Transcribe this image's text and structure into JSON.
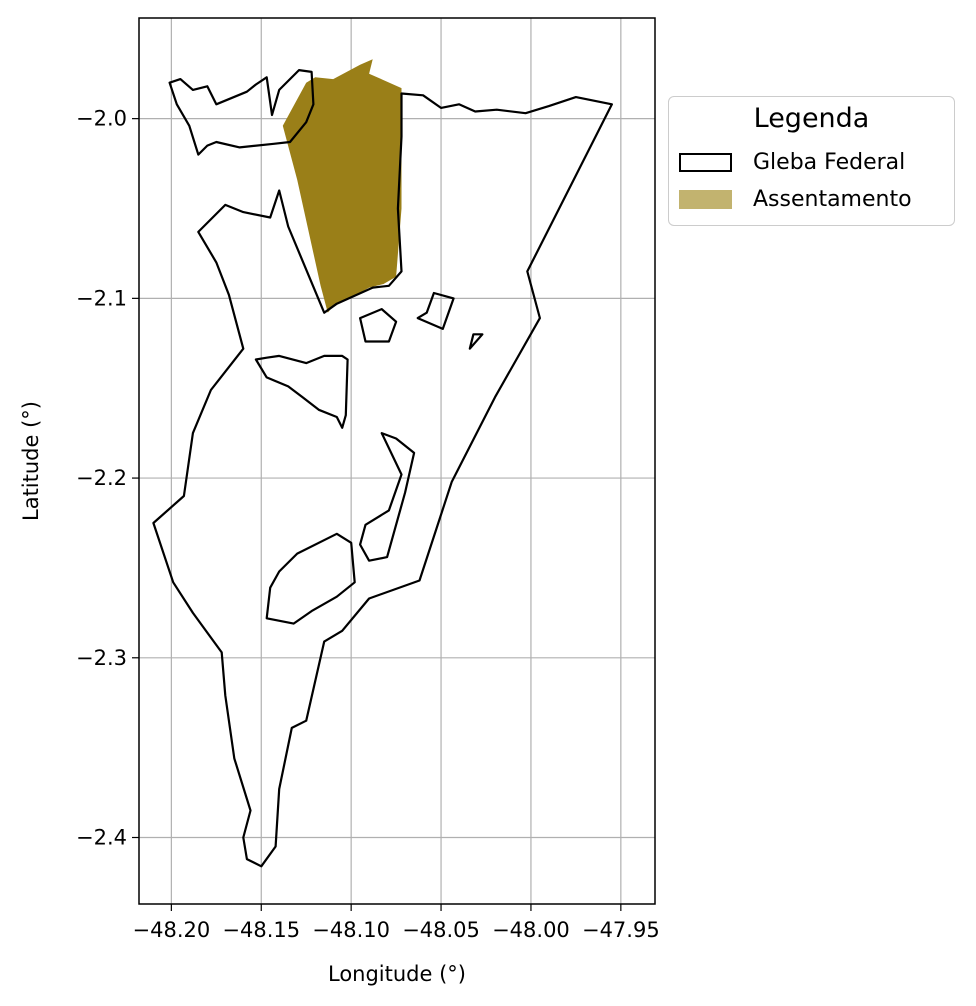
{
  "chart_data": {
    "type": "map",
    "xlabel": "Longitude (°)",
    "ylabel": "Latitude (°)",
    "xlim": [
      -48.218,
      -47.931
    ],
    "ylim": [
      -2.437,
      -1.944
    ],
    "x_ticks": [
      -48.2,
      -48.15,
      -48.1,
      -48.05,
      -48.0,
      -47.95
    ],
    "y_ticks": [
      -2.0,
      -2.1,
      -2.2,
      -2.3,
      -2.4
    ],
    "x_tick_labels": [
      "−48.20",
      "−48.15",
      "−48.10",
      "−48.05",
      "−48.00",
      "−47.95"
    ],
    "y_tick_labels": [
      "−2.0",
      "−2.1",
      "−2.2",
      "−2.3",
      "−2.4"
    ],
    "grid": true,
    "legend": {
      "title": "Legenda",
      "placement": "outside-right-top",
      "entries": [
        {
          "label": "Gleba Federal",
          "style": "outline",
          "color": "#000000"
        },
        {
          "label": "Assentamento",
          "style": "fill",
          "color": "#c2b36f"
        }
      ]
    },
    "layers": [
      {
        "name": "Gleba Federal",
        "style": "outline",
        "color": "#000000",
        "polygons": [
          [
            [
              -48.201,
              -1.98
            ],
            [
              -48.195,
              -1.978
            ],
            [
              -48.188,
              -1.984
            ],
            [
              -48.18,
              -1.982
            ],
            [
              -48.175,
              -1.992
            ],
            [
              -48.158,
              -1.985
            ],
            [
              -48.153,
              -1.981
            ],
            [
              -48.147,
              -1.977
            ],
            [
              -48.144,
              -1.998
            ],
            [
              -48.14,
              -1.984
            ],
            [
              -48.129,
              -1.973
            ],
            [
              -48.122,
              -1.974
            ],
            [
              -48.121,
              -1.992
            ],
            [
              -48.125,
              -2.002
            ],
            [
              -48.134,
              -2.013
            ],
            [
              -48.143,
              -2.014
            ],
            [
              -48.162,
              -2.016
            ],
            [
              -48.175,
              -2.013
            ],
            [
              -48.18,
              -2.015
            ],
            [
              -48.185,
              -2.02
            ],
            [
              -48.19,
              -2.004
            ],
            [
              -48.197,
              -1.992
            ],
            [
              -48.201,
              -1.98
            ]
          ],
          [
            [
              -48.072,
              -1.986
            ],
            [
              -48.06,
              -1.987
            ],
            [
              -48.05,
              -1.994
            ],
            [
              -48.04,
              -1.992
            ],
            [
              -48.031,
              -1.996
            ],
            [
              -48.019,
              -1.995
            ],
            [
              -48.003,
              -1.997
            ],
            [
              -47.99,
              -1.993
            ],
            [
              -47.975,
              -1.988
            ],
            [
              -47.955,
              -1.992
            ],
            [
              -48.002,
              -2.085
            ],
            [
              -47.995,
              -2.111
            ],
            [
              -48.02,
              -2.155
            ],
            [
              -48.044,
              -2.202
            ],
            [
              -48.062,
              -2.257
            ],
            [
              -48.09,
              -2.267
            ],
            [
              -48.105,
              -2.285
            ],
            [
              -48.115,
              -2.291
            ],
            [
              -48.125,
              -2.335
            ],
            [
              -48.133,
              -2.339
            ],
            [
              -48.14,
              -2.373
            ],
            [
              -48.142,
              -2.405
            ],
            [
              -48.15,
              -2.416
            ],
            [
              -48.158,
              -2.412
            ],
            [
              -48.16,
              -2.4
            ],
            [
              -48.156,
              -2.385
            ],
            [
              -48.165,
              -2.356
            ],
            [
              -48.17,
              -2.321
            ],
            [
              -48.172,
              -2.297
            ],
            [
              -48.188,
              -2.275
            ],
            [
              -48.199,
              -2.258
            ],
            [
              -48.21,
              -2.225
            ],
            [
              -48.193,
              -2.21
            ],
            [
              -48.188,
              -2.175
            ],
            [
              -48.178,
              -2.151
            ],
            [
              -48.16,
              -2.128
            ],
            [
              -48.168,
              -2.098
            ],
            [
              -48.175,
              -2.08
            ],
            [
              -48.185,
              -2.063
            ],
            [
              -48.17,
              -2.048
            ],
            [
              -48.16,
              -2.052
            ],
            [
              -48.145,
              -2.055
            ],
            [
              -48.14,
              -2.04
            ],
            [
              -48.135,
              -2.06
            ],
            [
              -48.115,
              -2.108
            ],
            [
              -48.108,
              -2.103
            ],
            [
              -48.088,
              -2.094
            ],
            [
              -48.079,
              -2.093
            ],
            [
              -48.072,
              -2.085
            ],
            [
              -48.074,
              -2.05
            ],
            [
              -48.072,
              -2.01
            ],
            [
              -48.072,
              -1.986
            ]
          ],
          [
            [
              -48.125,
              -2.136
            ],
            [
              -48.115,
              -2.132
            ],
            [
              -48.105,
              -2.132
            ],
            [
              -48.102,
              -2.134
            ],
            [
              -48.103,
              -2.165
            ],
            [
              -48.105,
              -2.172
            ],
            [
              -48.108,
              -2.166
            ],
            [
              -48.118,
              -2.162
            ],
            [
              -48.127,
              -2.155
            ],
            [
              -48.135,
              -2.149
            ],
            [
              -48.147,
              -2.144
            ],
            [
              -48.153,
              -2.134
            ],
            [
              -48.147,
              -2.133
            ],
            [
              -48.14,
              -2.132
            ],
            [
              -48.125,
              -2.136
            ]
          ],
          [
            [
              -48.092,
              -2.124
            ],
            [
              -48.086,
              -2.124
            ],
            [
              -48.079,
              -2.124
            ],
            [
              -48.075,
              -2.113
            ],
            [
              -48.083,
              -2.106
            ],
            [
              -48.095,
              -2.111
            ],
            [
              -48.092,
              -2.124
            ]
          ],
          [
            [
              -48.054,
              -2.097
            ],
            [
              -48.058,
              -2.108
            ],
            [
              -48.063,
              -2.111
            ],
            [
              -48.049,
              -2.117
            ],
            [
              -48.043,
              -2.1
            ],
            [
              -48.054,
              -2.097
            ]
          ],
          [
            [
              -48.032,
              -2.12
            ],
            [
              -48.034,
              -2.128
            ],
            [
              -48.027,
              -2.12
            ],
            [
              -48.032,
              -2.12
            ]
          ],
          [
            [
              -48.13,
              -2.242
            ],
            [
              -48.108,
              -2.231
            ],
            [
              -48.1,
              -2.236
            ],
            [
              -48.098,
              -2.258
            ],
            [
              -48.108,
              -2.266
            ],
            [
              -48.122,
              -2.274
            ],
            [
              -48.132,
              -2.281
            ],
            [
              -48.147,
              -2.278
            ],
            [
              -48.145,
              -2.261
            ],
            [
              -48.14,
              -2.252
            ],
            [
              -48.13,
              -2.242
            ]
          ],
          [
            [
              -48.083,
              -2.175
            ],
            [
              -48.072,
              -2.198
            ],
            [
              -48.079,
              -2.218
            ],
            [
              -48.092,
              -2.226
            ],
            [
              -48.095,
              -2.237
            ],
            [
              -48.09,
              -2.246
            ],
            [
              -48.08,
              -2.244
            ],
            [
              -48.07,
              -2.208
            ],
            [
              -48.065,
              -2.186
            ],
            [
              -48.075,
              -2.178
            ],
            [
              -48.083,
              -2.175
            ]
          ]
        ]
      },
      {
        "name": "Assentamento",
        "style": "fill",
        "color": "#c2b36f",
        "polygons": [
          [
            [
              -48.12,
              -1.977
            ],
            [
              -48.11,
              -1.978
            ],
            [
              -48.095,
              -1.97
            ],
            [
              -48.088,
              -1.967
            ],
            [
              -48.09,
              -1.975
            ],
            [
              -48.072,
              -1.983
            ],
            [
              -48.072,
              -2.05
            ],
            [
              -48.075,
              -2.088
            ],
            [
              -48.082,
              -2.092
            ],
            [
              -48.09,
              -2.094
            ],
            [
              -48.101,
              -2.1
            ],
            [
              -48.109,
              -2.103
            ],
            [
              -48.113,
              -2.108
            ],
            [
              -48.117,
              -2.093
            ],
            [
              -48.13,
              -2.034
            ],
            [
              -48.138,
              -2.004
            ],
            [
              -48.125,
              -1.98
            ],
            [
              -48.12,
              -1.977
            ]
          ]
        ]
      }
    ]
  }
}
